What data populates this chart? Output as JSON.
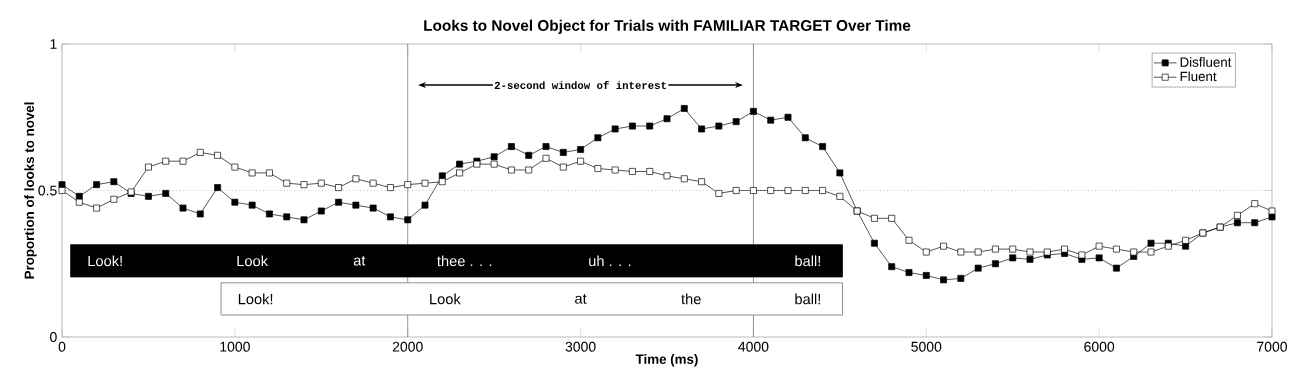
{
  "chart_data": {
    "type": "line",
    "title": "Looks to Novel Object for Trials with FAMILIAR TARGET Over Time",
    "xlabel": "Time (ms)",
    "ylabel": "Proportion of looks to novel",
    "x": [
      0,
      100,
      200,
      300,
      400,
      500,
      600,
      700,
      800,
      900,
      1000,
      1100,
      1200,
      1300,
      1400,
      1500,
      1600,
      1700,
      1800,
      1900,
      2000,
      2100,
      2200,
      2300,
      2400,
      2500,
      2600,
      2700,
      2800,
      2900,
      3000,
      3100,
      3200,
      3300,
      3400,
      3500,
      3600,
      3700,
      3800,
      3900,
      4000,
      4100,
      4200,
      4300,
      4400,
      4500,
      4600,
      4700,
      4800,
      4900,
      5000,
      5100,
      5200,
      5300,
      5400,
      5500,
      5600,
      5700,
      5800,
      5900,
      6000,
      6100,
      6200,
      6300,
      6400,
      6500,
      6600,
      6700,
      6800,
      6900,
      7000
    ],
    "series": [
      {
        "name": "Disfluent",
        "color": "#000000",
        "values": [
          0.52,
          0.48,
          0.52,
          0.53,
          0.49,
          0.48,
          0.49,
          0.44,
          0.42,
          0.51,
          0.46,
          0.45,
          0.42,
          0.41,
          0.4,
          0.43,
          0.46,
          0.45,
          0.44,
          0.41,
          0.4,
          0.45,
          0.55,
          0.59,
          0.6,
          0.615,
          0.65,
          0.62,
          0.65,
          0.63,
          0.64,
          0.68,
          0.71,
          0.72,
          0.72,
          0.745,
          0.78,
          0.71,
          0.72,
          0.735,
          0.77,
          0.74,
          0.75,
          0.68,
          0.65,
          0.56,
          0.43,
          0.32,
          0.24,
          0.22,
          0.21,
          0.195,
          0.2,
          0.235,
          0.25,
          0.27,
          0.265,
          0.28,
          0.285,
          0.265,
          0.27,
          0.235,
          0.275,
          0.32,
          0.32,
          0.31,
          0.355,
          0.375,
          0.39,
          0.39,
          0.41
        ]
      },
      {
        "name": "Fluent",
        "color": "#ffffff",
        "values": [
          0.5,
          0.46,
          0.44,
          0.47,
          0.495,
          0.58,
          0.6,
          0.6,
          0.63,
          0.62,
          0.58,
          0.56,
          0.56,
          0.525,
          0.52,
          0.525,
          0.51,
          0.54,
          0.525,
          0.51,
          0.52,
          0.525,
          0.53,
          0.56,
          0.59,
          0.59,
          0.57,
          0.57,
          0.61,
          0.58,
          0.6,
          0.575,
          0.57,
          0.565,
          0.565,
          0.55,
          0.54,
          0.53,
          0.49,
          0.5,
          0.5,
          0.5,
          0.5,
          0.5,
          0.5,
          0.48,
          0.43,
          0.405,
          0.405,
          0.33,
          0.29,
          0.31,
          0.29,
          0.29,
          0.3,
          0.3,
          0.29,
          0.29,
          0.3,
          0.28,
          0.31,
          0.3,
          0.29,
          0.29,
          0.31,
          0.33,
          0.355,
          0.375,
          0.415,
          0.455,
          0.43
        ]
      }
    ],
    "xlim": [
      0,
      7000
    ],
    "ylim": [
      0,
      1
    ],
    "xticks": [
      0,
      1000,
      2000,
      3000,
      4000,
      5000,
      6000,
      7000
    ],
    "yticks": [
      0,
      0.5,
      1
    ],
    "marker": "square",
    "legend": "top right",
    "ref_lines": [
      {
        "axis": "y",
        "value": 0.5,
        "color": "#aaaaaa",
        "line_style": "dotted"
      },
      {
        "axis": "x",
        "value": 2000,
        "color": "#777777",
        "line_style": "solid"
      },
      {
        "axis": "x",
        "value": 4000,
        "color": "#777777",
        "line_style": "solid"
      }
    ],
    "annotations": [
      "2-second window of interest",
      "Look!",
      "Look",
      "at",
      "thee . . .",
      "uh . . .",
      "ball!",
      "Look!",
      "Look",
      "at",
      "the",
      "ball!"
    ]
  }
}
